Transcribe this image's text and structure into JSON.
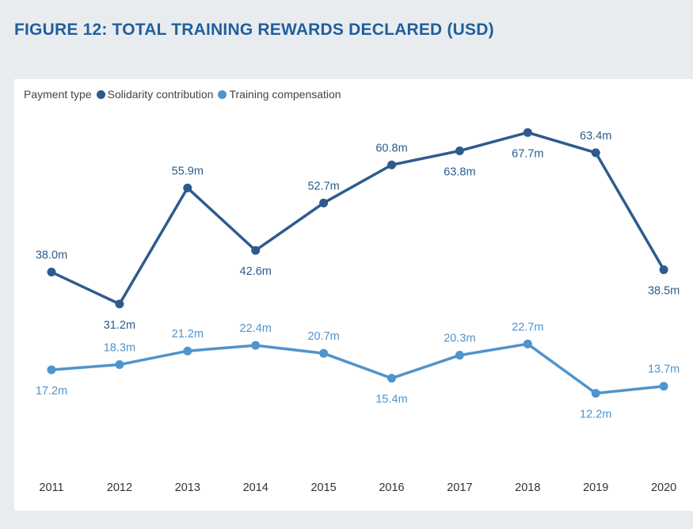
{
  "title": "FIGURE 12: TOTAL TRAINING REWARDS DECLARED (USD)",
  "colors": {
    "solidarity": "#2e5b8e",
    "training": "#4f94cc",
    "title": "#1f5f9e"
  },
  "chart_data": {
    "type": "line",
    "title": "FIGURE 12: TOTAL TRAINING REWARDS DECLARED (USD)",
    "legend_title": "Payment type",
    "legend_position": "top-left",
    "xlabel": "",
    "ylabel": "",
    "ylim": [
      0,
      75
    ],
    "grid": false,
    "categories": [
      "2011",
      "2012",
      "2013",
      "2014",
      "2015",
      "2016",
      "2017",
      "2018",
      "2019",
      "2020"
    ],
    "series": [
      {
        "name": "Solidarity contribution",
        "values": [
          38.0,
          31.2,
          55.9,
          42.6,
          52.7,
          60.8,
          63.8,
          67.7,
          63.4,
          38.5
        ],
        "labels": [
          "38.0m",
          "31.2m",
          "55.9m",
          "42.6m",
          "52.7m",
          "60.8m",
          "63.8m",
          "67.7m",
          "63.4m",
          "38.5m"
        ],
        "label_pos": [
          "above",
          "below",
          "above",
          "below",
          "above",
          "above",
          "below",
          "below",
          "above",
          "below"
        ]
      },
      {
        "name": "Training compensation",
        "values": [
          17.2,
          18.3,
          21.2,
          22.4,
          20.7,
          15.4,
          20.3,
          22.7,
          12.2,
          13.7
        ],
        "labels": [
          "17.2m",
          "18.3m",
          "21.2m",
          "22.4m",
          "20.7m",
          "15.4m",
          "20.3m",
          "22.7m",
          "12.2m",
          "13.7m"
        ],
        "label_pos": [
          "below",
          "above",
          "above",
          "above",
          "above",
          "below",
          "above",
          "above",
          "below",
          "above"
        ]
      }
    ]
  }
}
